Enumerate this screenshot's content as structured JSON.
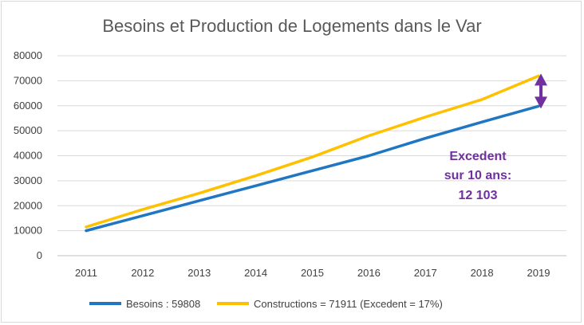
{
  "chart_data": {
    "type": "line",
    "title": "Besoins et Production de Logements dans le Var",
    "xlabel": "",
    "ylabel": "",
    "categories": [
      "2011",
      "2012",
      "2013",
      "2014",
      "2015",
      "2016",
      "2017",
      "2018",
      "2019"
    ],
    "ylim": [
      0,
      80000
    ],
    "yticks": [
      "0",
      "10000",
      "20000",
      "30000",
      "40000",
      "50000",
      "60000",
      "70000",
      "80000"
    ],
    "grid": true,
    "legend_position": "bottom",
    "series": [
      {
        "name": "Besoins : 59808",
        "color": "#1f77c4",
        "values": [
          10000,
          16000,
          22000,
          28000,
          34000,
          40000,
          47000,
          53500,
          59808
        ]
      },
      {
        "name": "Constructions = 71911 (Excedent = 17%)",
        "color": "#ffc000",
        "values": [
          11500,
          18500,
          25000,
          32000,
          39500,
          48000,
          55500,
          62500,
          71911
        ]
      }
    ],
    "annotation": {
      "lines": [
        "Excedent",
        "sur 10 ans:",
        "12 103"
      ],
      "color": "#7030a0"
    }
  }
}
